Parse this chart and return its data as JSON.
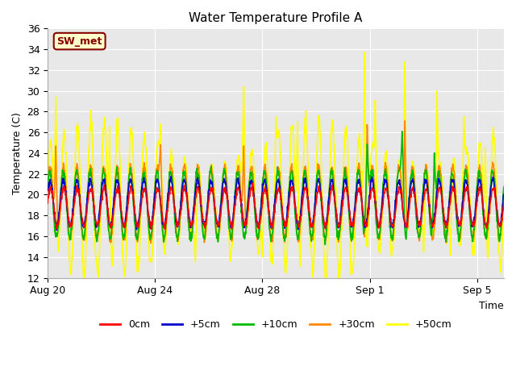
{
  "title": "Water Temperature Profile A",
  "xlabel": "Time",
  "ylabel": "Temperature (C)",
  "ylim": [
    12,
    36
  ],
  "yticks": [
    12,
    14,
    16,
    18,
    20,
    22,
    24,
    26,
    28,
    30,
    32,
    34,
    36
  ],
  "bg_color": "#e8e8e8",
  "grid_color": "white",
  "series": {
    "0cm": {
      "color": "#ff0000",
      "lw": 1.2
    },
    "+5cm": {
      "color": "#0000cc",
      "lw": 1.2
    },
    "+10cm": {
      "color": "#00bb00",
      "lw": 1.2
    },
    "+30cm": {
      "color": "#ff8800",
      "lw": 1.2
    },
    "+50cm": {
      "color": "#ffff00",
      "lw": 1.2
    }
  },
  "xtick_labels": [
    "Aug 20",
    "Aug 24",
    "Aug 28",
    "Sep 1",
    "Sep 5"
  ],
  "legend_label_box": "SW_met",
  "legend_label_box_color": "#880000",
  "legend_label_box_bg": "#ffffcc"
}
